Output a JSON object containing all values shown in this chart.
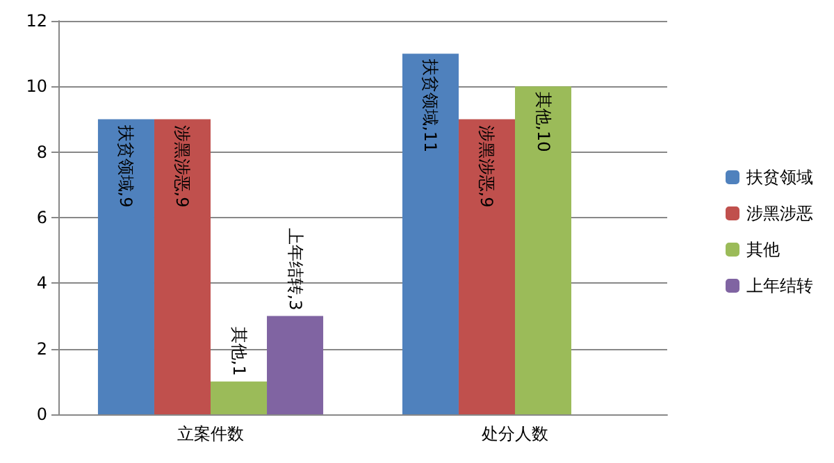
{
  "chart_data": {
    "type": "bar",
    "categories": [
      "立案件数",
      "处分人数"
    ],
    "series": [
      {
        "name": "扶贫领域",
        "color": "#4f81bd",
        "values": [
          9,
          11
        ],
        "value_labels": [
          "扶贫领域,9",
          "扶贫领域,11"
        ]
      },
      {
        "name": "涉黑涉恶",
        "color": "#c0504d",
        "values": [
          9,
          9
        ],
        "value_labels": [
          "涉黑涉恶,9",
          "涉黑涉恶,9"
        ]
      },
      {
        "name": "其他",
        "color": "#9bbb59",
        "values": [
          1,
          10
        ],
        "value_labels": [
          "其他,1",
          "其他,10"
        ]
      },
      {
        "name": "上年结转",
        "color": "#8064a2",
        "values": [
          3,
          null
        ],
        "value_labels": [
          "上年结转,3",
          null
        ]
      }
    ],
    "ylim": [
      0,
      12
    ],
    "yticks": [
      0,
      2,
      4,
      6,
      8,
      10,
      12
    ],
    "grid": "y",
    "legend": "right"
  }
}
